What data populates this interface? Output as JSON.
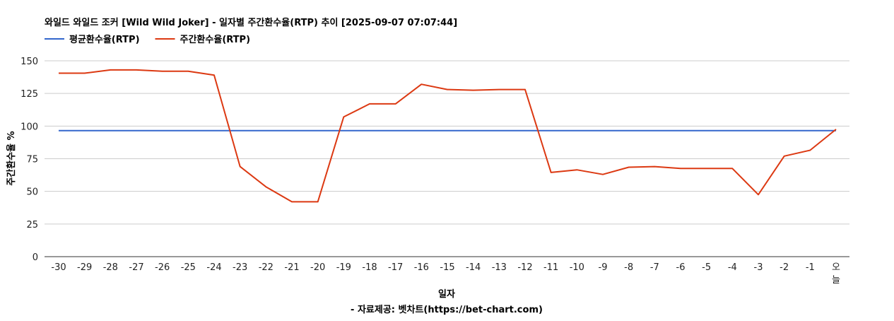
{
  "chart_data": {
    "type": "line",
    "title": "와일드 와일드 조커 [Wild Wild Joker] - 일자별 주간환수율(RTP) 추이 [2025-09-07 07:07:44]",
    "xlabel": "일자",
    "ylabel": "주간환수율 %",
    "caption": "- 자료제공: 벳차트(https://bet-chart.com)",
    "categories": [
      "-30",
      "-29",
      "-28",
      "-27",
      "-26",
      "-25",
      "-24",
      "-23",
      "-22",
      "-21",
      "-20",
      "-19",
      "-18",
      "-17",
      "-16",
      "-15",
      "-14",
      "-13",
      "-12",
      "-11",
      "-10",
      "-9",
      "-8",
      "-7",
      "-6",
      "-5",
      "-4",
      "-3",
      "-2",
      "-1",
      "오늘"
    ],
    "ylim": [
      0,
      150
    ],
    "yticks": [
      0,
      25,
      50,
      75,
      100,
      125,
      150
    ],
    "grid": true,
    "legend_position": "top-left",
    "series": [
      {
        "name": "평균환수율(RTP)",
        "color": "#3366cc",
        "values": [
          96.5,
          96.5,
          96.5,
          96.5,
          96.5,
          96.5,
          96.5,
          96.5,
          96.5,
          96.5,
          96.5,
          96.5,
          96.5,
          96.5,
          96.5,
          96.5,
          96.5,
          96.5,
          96.5,
          96.5,
          96.5,
          96.5,
          96.5,
          96.5,
          96.5,
          96.5,
          96.5,
          96.5,
          96.5,
          96.5,
          96.5
        ]
      },
      {
        "name": "주간환수율(RTP)",
        "color": "#dc3912",
        "values": [
          140.5,
          140.5,
          143,
          143,
          142,
          142,
          139,
          69,
          53.5,
          42,
          42,
          107,
          117,
          117,
          132,
          128,
          127.5,
          128,
          128,
          64.5,
          66.5,
          63,
          68.5,
          69,
          67.5,
          67.5,
          67.5,
          47.5,
          77,
          81.5,
          97.5
        ]
      }
    ]
  }
}
